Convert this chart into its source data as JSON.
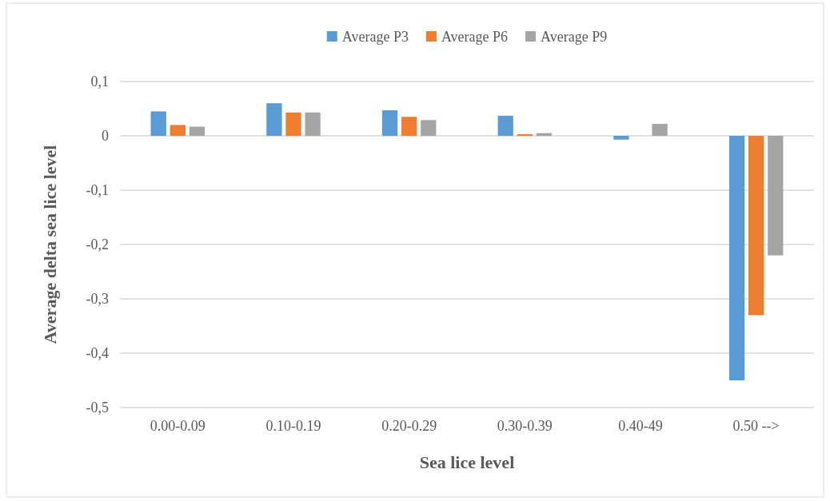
{
  "chart_data": {
    "type": "bar",
    "xlabel": "Sea lice level",
    "ylabel": "Average delta sea lice level",
    "categories": [
      "0.00-0.09",
      "0.10-0.19",
      "0.20-0.29",
      "0.30-0.39",
      "0.40-49",
      "0.50 -->"
    ],
    "series": [
      {
        "name": "Average P3",
        "color": "#5b9bd5",
        "values": [
          0.045,
          0.06,
          0.047,
          0.037,
          -0.007,
          -0.45
        ]
      },
      {
        "name": "Average P6",
        "color": "#ed7d31",
        "values": [
          0.02,
          0.043,
          0.035,
          0.003,
          0,
          -0.33
        ]
      },
      {
        "name": "Average P9",
        "color": "#a5a5a5",
        "values": [
          0.017,
          0.043,
          0.029,
          0.005,
          0.022,
          -0.22
        ]
      }
    ],
    "ylim": [
      -0.5,
      0.1
    ],
    "yticks": [
      {
        "value": -0.5,
        "label": "-0,5"
      },
      {
        "value": -0.4,
        "label": "-0,4"
      },
      {
        "value": -0.3,
        "label": "-0,3"
      },
      {
        "value": -0.2,
        "label": "-0,2"
      },
      {
        "value": -0.1,
        "label": "-0,1"
      },
      {
        "value": 0,
        "label": "0"
      },
      {
        "value": 0.1,
        "label": "0,1"
      }
    ],
    "grid": "y",
    "legend": "top"
  }
}
